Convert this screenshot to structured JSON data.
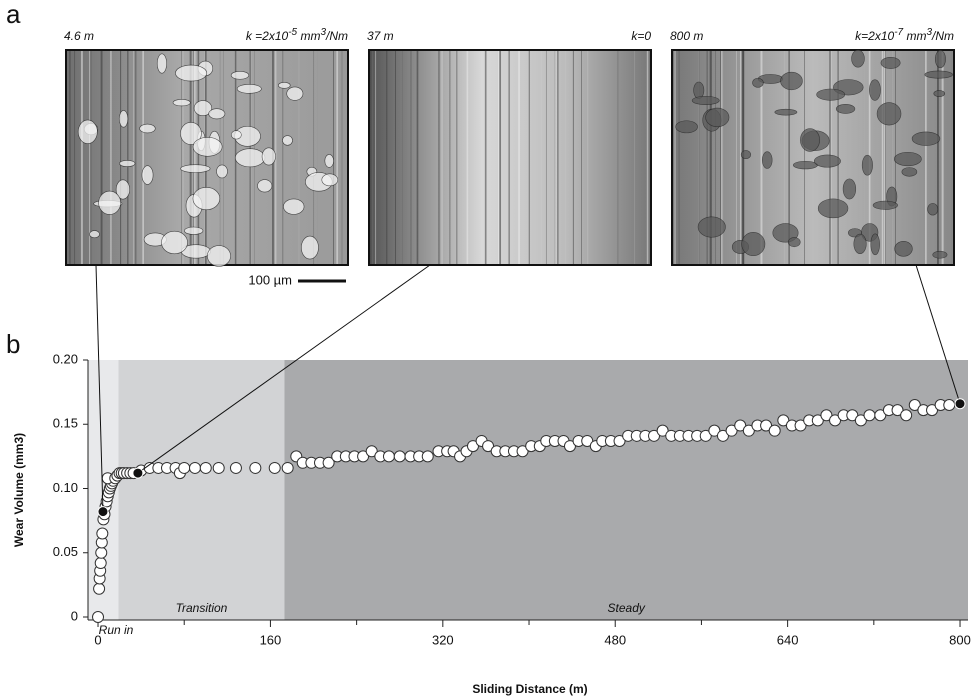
{
  "chart_data": {
    "type": "scatter",
    "panel_labels": [
      "a",
      "b"
    ],
    "micrographs": [
      {
        "distance_label": "4.6 m",
        "k_label": [
          "k =2x10",
          "-5",
          " mm",
          "3",
          "/Nm"
        ],
        "x": 4.6,
        "value": 0.082
      },
      {
        "distance_label": "37 m",
        "k_label": [
          "k=0"
        ],
        "x": 37,
        "value": 0.112
      },
      {
        "distance_label": "800 m",
        "k_label": [
          "k=2x10",
          "-7",
          " mm",
          "3",
          "/Nm"
        ],
        "x": 800,
        "value": 0.166
      }
    ],
    "scale_bar": "100 µm",
    "x_label": "Sliding Distance (m)",
    "y_label": "Wear Volume (mm3)",
    "regions": [
      {
        "label": "Run in",
        "start": -9.3,
        "end": 19,
        "color": "#e8e9eb"
      },
      {
        "label": "Transition",
        "start": 19,
        "end": 173,
        "color": "#d2d3d5"
      },
      {
        "label": "Steady",
        "start": 173,
        "end": 807.4,
        "color": "#a9aaac"
      }
    ],
    "x": [
      0,
      1,
      1.5,
      2,
      2.5,
      3,
      3.5,
      4,
      5,
      6,
      7,
      8,
      9,
      10,
      11,
      12,
      13,
      14,
      9,
      16,
      18,
      20,
      22,
      24,
      27,
      30,
      33,
      40,
      48,
      56,
      64,
      72,
      76,
      80,
      90,
      100,
      112,
      128,
      146,
      164,
      176,
      184,
      190,
      198,
      206,
      214,
      222,
      230,
      238,
      246,
      254,
      262,
      270,
      280,
      290,
      298,
      306,
      316,
      324,
      330,
      336,
      342,
      348,
      356,
      362,
      370,
      378,
      386,
      394,
      402,
      410,
      416,
      424,
      432,
      438,
      446,
      454,
      462,
      468,
      476,
      484,
      492,
      500,
      508,
      516,
      524,
      532,
      540,
      548,
      556,
      564,
      572,
      580,
      588,
      596,
      604,
      612,
      620,
      628,
      636,
      644,
      652,
      660,
      668,
      676,
      684,
      692,
      700,
      708,
      716,
      726,
      734,
      742,
      750,
      758,
      766,
      774,
      782,
      790
    ],
    "values": [
      0,
      0.022,
      0.03,
      0.036,
      0.042,
      0.05,
      0.058,
      0.065,
      0.076,
      0.08,
      0.086,
      0.09,
      0.094,
      0.097,
      0.1,
      0.102,
      0.104,
      0.106,
      0.108,
      0.108,
      0.11,
      0.112,
      0.112,
      0.112,
      0.112,
      0.112,
      0.112,
      0.114,
      0.116,
      0.116,
      0.116,
      0.116,
      0.112,
      0.116,
      0.116,
      0.116,
      0.116,
      0.116,
      0.116,
      0.116,
      0.116,
      0.125,
      0.12,
      0.12,
      0.12,
      0.12,
      0.125,
      0.125,
      0.125,
      0.125,
      0.129,
      0.125,
      0.125,
      0.125,
      0.125,
      0.125,
      0.125,
      0.129,
      0.129,
      0.129,
      0.125,
      0.129,
      0.133,
      0.137,
      0.133,
      0.129,
      0.129,
      0.129,
      0.129,
      0.133,
      0.133,
      0.137,
      0.137,
      0.137,
      0.133,
      0.137,
      0.137,
      0.133,
      0.137,
      0.137,
      0.137,
      0.141,
      0.141,
      0.141,
      0.141,
      0.145,
      0.141,
      0.141,
      0.141,
      0.141,
      0.141,
      0.145,
      0.141,
      0.145,
      0.149,
      0.145,
      0.149,
      0.149,
      0.145,
      0.153,
      0.149,
      0.149,
      0.153,
      0.153,
      0.157,
      0.153,
      0.157,
      0.157,
      0.153,
      0.157,
      0.157,
      0.161,
      0.161,
      0.157,
      0.165,
      0.161,
      0.161,
      0.165,
      0.165
    ],
    "marker_fill": "#ffffff",
    "highlight_fill": "#111111",
    "xlim": [
      -9.3,
      807.4
    ],
    "ylim": [
      0,
      0.2
    ],
    "xticks": [
      0,
      160,
      320,
      480,
      640,
      800
    ],
    "xminorticks": [
      80,
      240,
      400,
      560,
      720
    ],
    "yticks": [
      0,
      0.05,
      {
        "value": 0.1,
        "label": "0.10"
      },
      0.15,
      {
        "value": 0.2,
        "label": "0.20"
      }
    ]
  }
}
